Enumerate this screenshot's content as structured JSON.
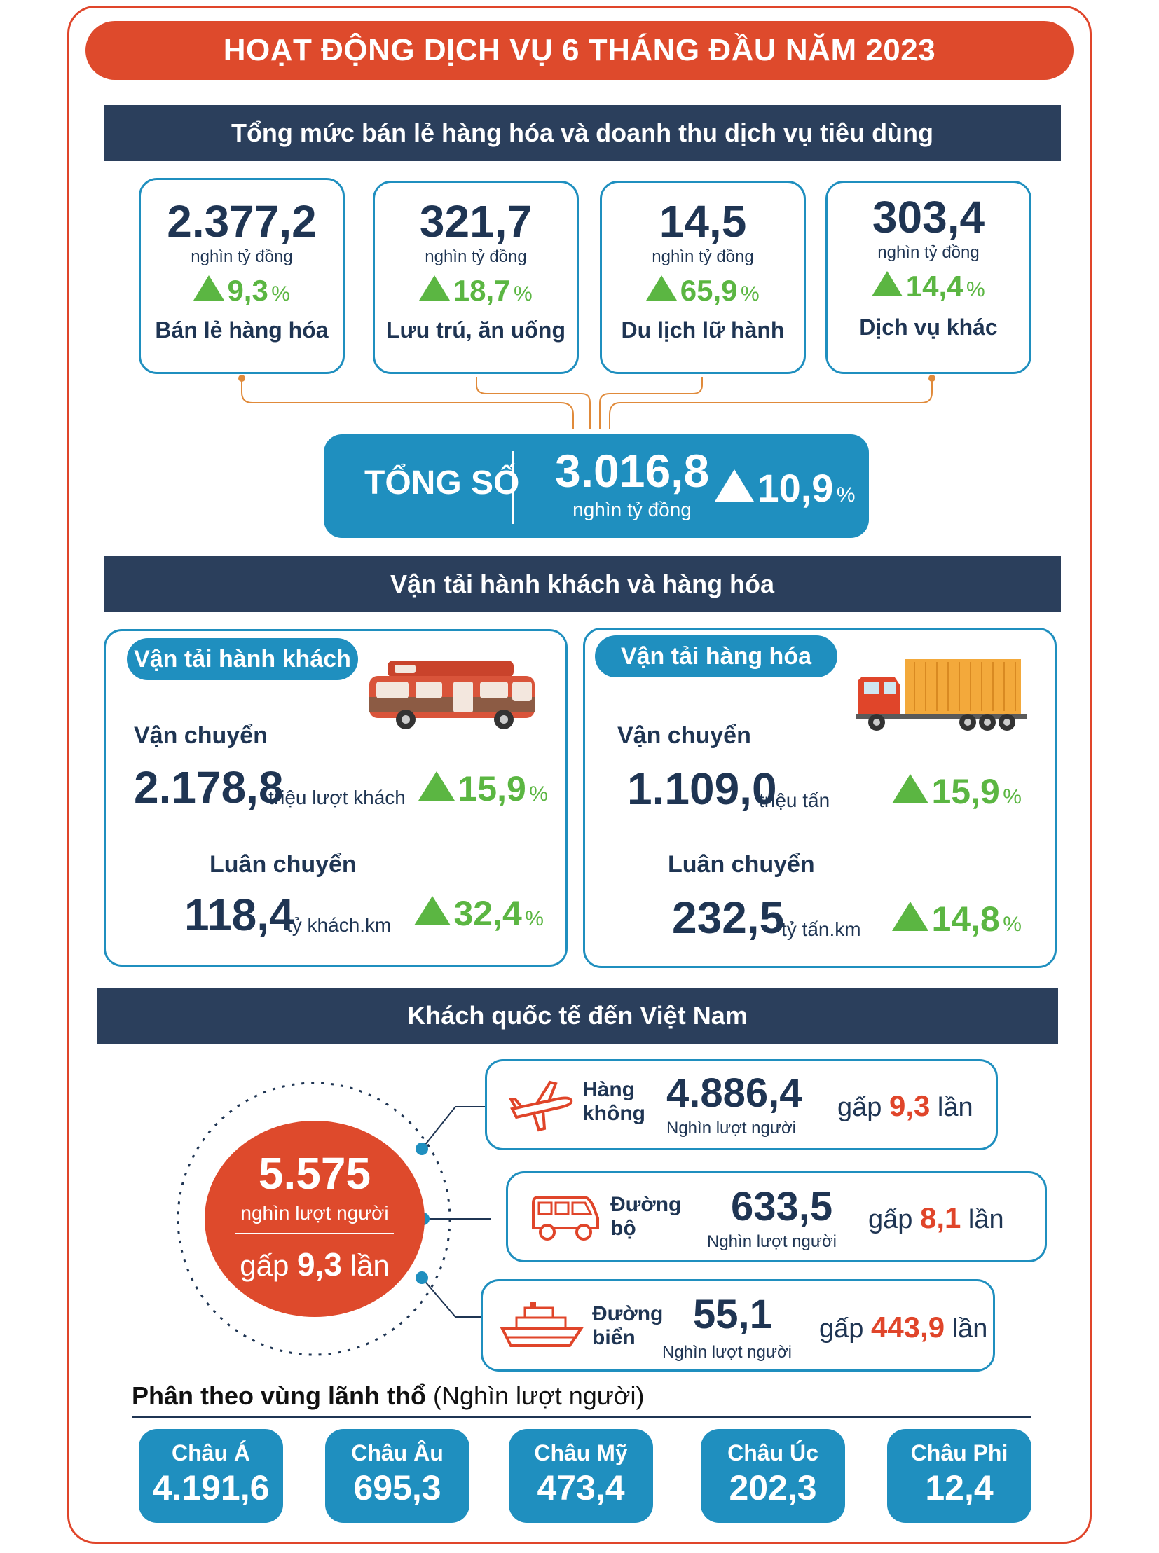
{
  "title": "HOẠT ĐỘNG DỊCH VỤ 6 THÁNG ĐẦU NĂM 2023",
  "retail": {
    "heading": "Tổng mức bán lẻ hàng hóa và doanh thu dịch vụ tiêu dùng",
    "items": [
      {
        "value": "2.377,2",
        "unit": "nghìn tỷ đồng",
        "growth": "9,3",
        "pct": "%",
        "label": "Bán lẻ hàng hóa"
      },
      {
        "value": "321,7",
        "unit": "nghìn tỷ đồng",
        "growth": "18,7",
        "pct": "%",
        "label": "Lưu trú, ăn uống"
      },
      {
        "value": "14,5",
        "unit": "nghìn tỷ đồng",
        "growth": "65,9",
        "pct": "%",
        "label": "Du lịch lữ hành"
      },
      {
        "value": "303,4",
        "unit": "nghìn tỷ đồng",
        "growth": "14,4",
        "pct": "%",
        "label": "Dịch vụ khác"
      }
    ],
    "total": {
      "label": "TỔNG SỐ",
      "value": "3.016,8",
      "unit": "nghìn tỷ đồng",
      "growth": "10,9",
      "pct": "%"
    }
  },
  "transport": {
    "heading": "Vận tải hành khách và hàng hóa",
    "passenger": {
      "title": "Vận tải hành khách",
      "carry_label": "Vận chuyển",
      "carry_value": "2.178,8",
      "carry_unit": "triệu lượt khách",
      "carry_growth": "15,9",
      "rotate_label": "Luân chuyển",
      "rotate_value": "118,4",
      "rotate_unit": "tỷ khách.km",
      "rotate_growth": "32,4",
      "pct": "%"
    },
    "cargo": {
      "title": "Vận tải hàng hóa",
      "carry_label": "Vận chuyển",
      "carry_value": "1.109,0",
      "carry_unit": "triệu tấn",
      "carry_growth": "15,9",
      "rotate_label": "Luân chuyển",
      "rotate_value": "232,5",
      "rotate_unit": "tỷ tấn.km",
      "rotate_growth": "14,8",
      "pct": "%"
    }
  },
  "visitors": {
    "heading": "Khách quốc tế đến Việt Nam",
    "total": {
      "value": "5.575",
      "unit": "nghìn lượt người",
      "times_prefix": "gấp",
      "times": "9,3",
      "times_suffix": "lần"
    },
    "modes": [
      {
        "name_1": "Hàng",
        "name_2": "không",
        "value": "4.886,4",
        "unit": "Nghìn lượt người",
        "times_prefix": "gấp",
        "times": "9,3",
        "times_suffix": "lần",
        "icon": "airplane-icon"
      },
      {
        "name_1": "Đường",
        "name_2": "bộ",
        "value": "633,5",
        "unit": "Nghìn lượt người",
        "times_prefix": "gấp",
        "times": "8,1",
        "times_suffix": "lần",
        "icon": "van-icon"
      },
      {
        "name_1": "Đường",
        "name_2": "biển",
        "value": "55,1",
        "unit": "Nghìn lượt người",
        "times_prefix": "gấp",
        "times": "443,9",
        "times_suffix": "lần",
        "icon": "ship-icon"
      }
    ],
    "region_heading_bold": "Phân theo vùng lãnh thổ",
    "region_heading_rest": "(Nghìn lượt người)",
    "regions": [
      {
        "name": "Châu Á",
        "value": "4.191,6"
      },
      {
        "name": "Châu Âu",
        "value": "695,3"
      },
      {
        "name": "Châu Mỹ",
        "value": "473,4"
      },
      {
        "name": "Châu Úc",
        "value": "202,3"
      },
      {
        "name": "Châu Phi",
        "value": "12,4"
      }
    ]
  },
  "colors": {
    "accent": "#de4a2c",
    "navy": "#2b3f5c",
    "blue": "#1f8fbf",
    "green": "#5bb642"
  }
}
